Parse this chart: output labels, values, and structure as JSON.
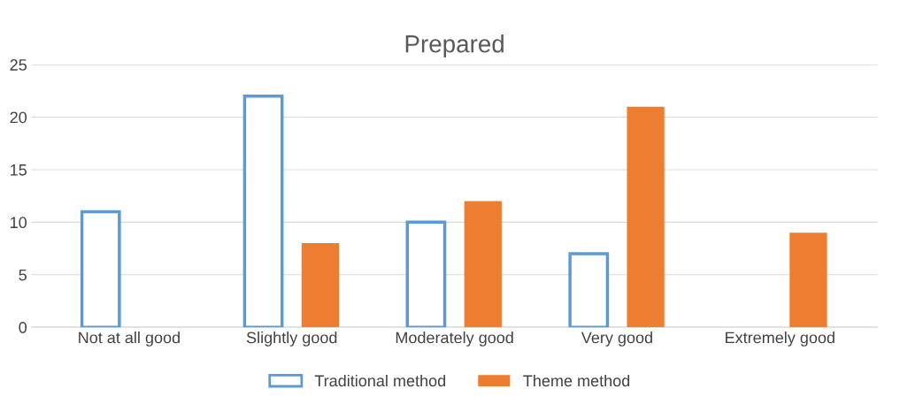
{
  "chart_data": {
    "type": "bar",
    "title": "Prepared",
    "categories": [
      "Not at all good",
      "Slightly good",
      "Moderately good",
      "Very good",
      "Extremely good"
    ],
    "series": [
      {
        "name": "Traditional method",
        "color": "#5b9bd5",
        "values": [
          11,
          22,
          10,
          7,
          null
        ]
      },
      {
        "name": "Theme method",
        "color": "#ed7d31",
        "values": [
          null,
          8,
          12,
          21,
          9
        ]
      }
    ],
    "ylim": [
      0,
      25
    ],
    "yticks": [
      0,
      5,
      10,
      15,
      20,
      25
    ],
    "grid": "y",
    "legend": "bottom"
  }
}
